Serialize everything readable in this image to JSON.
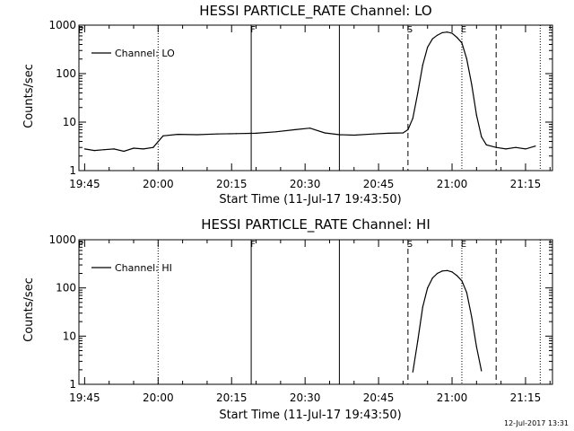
{
  "footer": {
    "stamp": "12-Jul-2017 13:31"
  },
  "chart_data": [
    {
      "type": "line",
      "title": "HESSI PARTICLE_RATE Channel: LO",
      "xlabel": "Start Time (11-Jul-17 19:43:50)",
      "ylabel": "Counts/sec",
      "yscale": "log",
      "ylim": [
        1,
        1000
      ],
      "xlim": [
        "19:43:50",
        "21:20:30"
      ],
      "x_ticks": [
        "19:45",
        "20:00",
        "20:15",
        "20:30",
        "20:45",
        "21:00",
        "21:15"
      ],
      "y_ticks": [
        "1",
        "10",
        "100",
        "1000"
      ],
      "legend": {
        "entries": [
          "Channel: LO"
        ],
        "placement": "top-left"
      },
      "colors": {
        "line": "#000000"
      },
      "markers": [
        {
          "label": "P",
          "time": "19:43:50",
          "style": "dotted"
        },
        {
          "label": "",
          "time": "20:00",
          "style": "dotted"
        },
        {
          "label": "F",
          "time": "20:19",
          "style": "solid"
        },
        {
          "label": "",
          "time": "20:37",
          "style": "solid"
        },
        {
          "label": "S",
          "time": "20:51",
          "style": "dashed"
        },
        {
          "label": "E",
          "time": "21:02",
          "style": "dotted"
        },
        {
          "label": "",
          "time": "21:09",
          "style": "dashed"
        },
        {
          "label": "",
          "time": "21:18",
          "style": "dotted"
        }
      ],
      "series": [
        {
          "name": "Channel: LO",
          "points": [
            [
              "19:45",
              2.8
            ],
            [
              "19:47",
              2.6
            ],
            [
              "19:49",
              2.7
            ],
            [
              "19:51",
              2.8
            ],
            [
              "19:53",
              2.5
            ],
            [
              "19:55",
              2.9
            ],
            [
              "19:57",
              2.8
            ],
            [
              "19:59",
              3.0
            ],
            [
              "20:01",
              5.2
            ],
            [
              "20:04",
              5.6
            ],
            [
              "20:08",
              5.5
            ],
            [
              "20:12",
              5.7
            ],
            [
              "20:16",
              5.8
            ],
            [
              "20:20",
              5.9
            ],
            [
              "20:24",
              6.3
            ],
            [
              "20:28",
              7.0
            ],
            [
              "20:31",
              7.5
            ],
            [
              "20:34",
              6.0
            ],
            [
              "20:37",
              5.5
            ],
            [
              "20:40",
              5.4
            ],
            [
              "20:44",
              5.7
            ],
            [
              "20:47",
              5.9
            ],
            [
              "20:50",
              6.0
            ],
            [
              "20:51",
              7.0
            ],
            [
              "20:52",
              12
            ],
            [
              "20:53",
              40
            ],
            [
              "20:54",
              150
            ],
            [
              "20:55",
              350
            ],
            [
              "20:56",
              520
            ],
            [
              "20:57",
              620
            ],
            [
              "20:58",
              700
            ],
            [
              "20:59",
              720
            ],
            [
              "21:00",
              680
            ],
            [
              "21:01",
              560
            ],
            [
              "21:02",
              430
            ],
            [
              "21:03",
              200
            ],
            [
              "21:04",
              60
            ],
            [
              "21:05",
              14
            ],
            [
              "21:06",
              5.0
            ],
            [
              "21:07",
              3.4
            ],
            [
              "21:09",
              3.0
            ],
            [
              "21:11",
              2.8
            ],
            [
              "21:13",
              3.0
            ],
            [
              "21:15",
              2.8
            ],
            [
              "21:17",
              3.2
            ]
          ]
        }
      ]
    },
    {
      "type": "line",
      "title": "HESSI PARTICLE_RATE Channel: HI",
      "xlabel": "Start Time (11-Jul-17 19:43:50)",
      "ylabel": "Counts/sec",
      "yscale": "log",
      "ylim": [
        1,
        1000
      ],
      "xlim": [
        "19:43:50",
        "21:20:30"
      ],
      "x_ticks": [
        "19:45",
        "20:00",
        "20:15",
        "20:30",
        "20:45",
        "21:00",
        "21:15"
      ],
      "y_ticks": [
        "1",
        "10",
        "100",
        "1000"
      ],
      "legend": {
        "entries": [
          "Channel: HI"
        ],
        "placement": "top-left"
      },
      "colors": {
        "line": "#000000"
      },
      "markers": [
        {
          "label": "P",
          "time": "19:43:50",
          "style": "dotted"
        },
        {
          "label": "",
          "time": "20:00",
          "style": "dotted"
        },
        {
          "label": "F",
          "time": "20:19",
          "style": "solid"
        },
        {
          "label": "",
          "time": "20:37",
          "style": "solid"
        },
        {
          "label": "S",
          "time": "20:51",
          "style": "dashed"
        },
        {
          "label": "E",
          "time": "21:02",
          "style": "dotted"
        },
        {
          "label": "",
          "time": "21:09",
          "style": "dashed"
        },
        {
          "label": "",
          "time": "21:18",
          "style": "dotted"
        }
      ],
      "series": [
        {
          "name": "Channel: HI",
          "points": [
            [
              "20:52",
              1.8
            ],
            [
              "20:53",
              8
            ],
            [
              "20:54",
              40
            ],
            [
              "20:55",
              100
            ],
            [
              "20:56",
              160
            ],
            [
              "20:57",
              200
            ],
            [
              "20:58",
              225
            ],
            [
              "20:59",
              230
            ],
            [
              "21:00",
              215
            ],
            [
              "21:01",
              180
            ],
            [
              "21:02",
              140
            ],
            [
              "21:03",
              80
            ],
            [
              "21:04",
              25
            ],
            [
              "21:05",
              6
            ],
            [
              "21:06",
              1.9
            ]
          ]
        }
      ]
    }
  ]
}
